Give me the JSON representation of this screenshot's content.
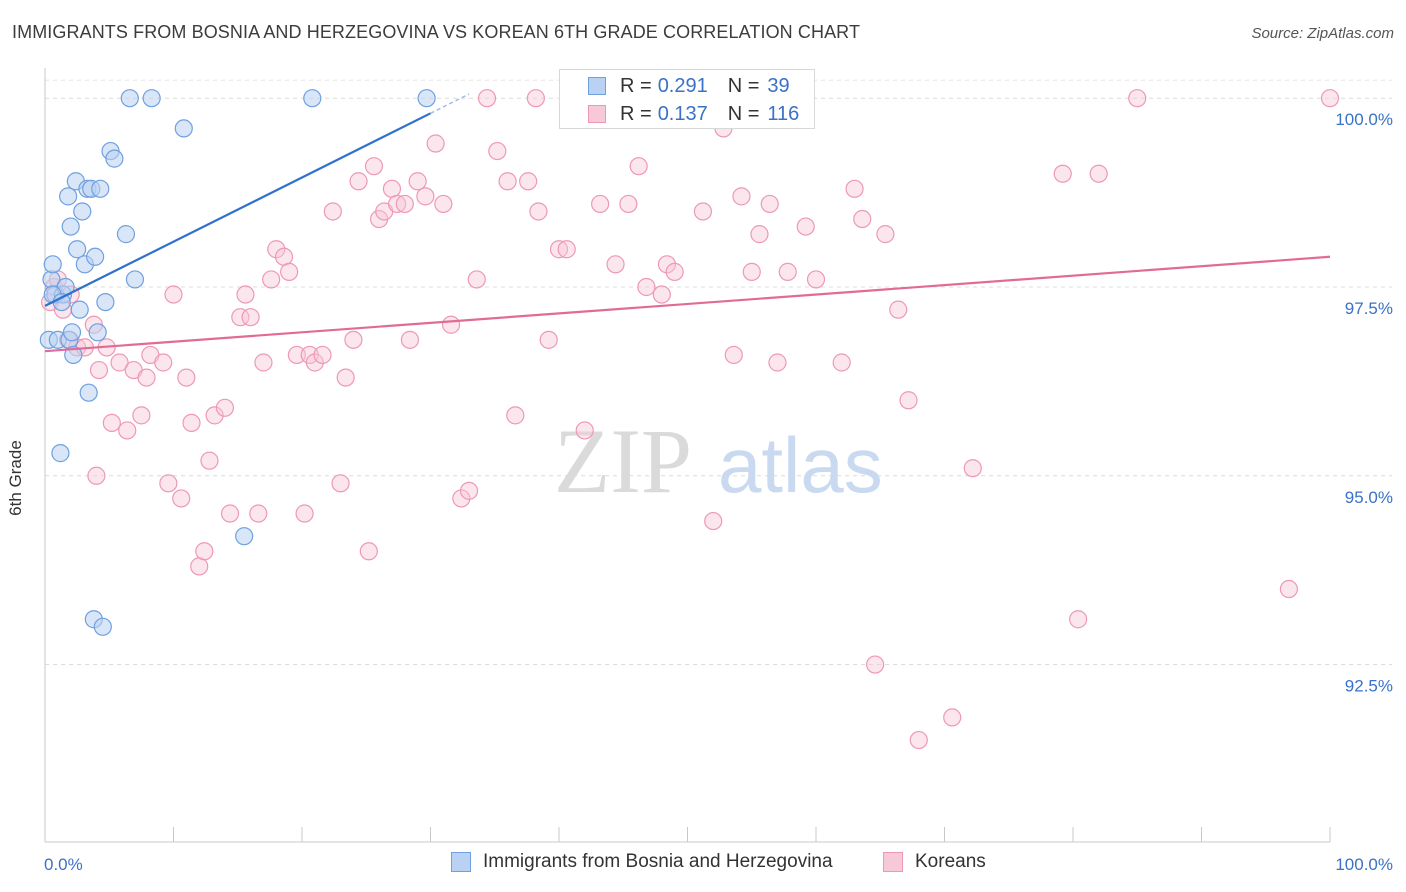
{
  "title": "IMMIGRANTS FROM BOSNIA AND HERZEGOVINA VS KOREAN 6TH GRADE CORRELATION CHART",
  "source": "Source: ZipAtlas.com",
  "watermark": {
    "zip": "ZIP",
    "atlas": "atlas"
  },
  "legend": {
    "r_label": "R =",
    "n_label": "N =",
    "series1": {
      "r": "0.291",
      "n": "39"
    },
    "series2": {
      "r": "0.137",
      "n": "116"
    }
  },
  "colors": {
    "blue": "#6fa0e0",
    "blue_fill": "#b9d1f2",
    "blue_line": "#2f72cc",
    "pink": "#ee98b5",
    "pink_fill": "#f7c8d8",
    "pink_line": "#e26b96",
    "axis_text": "#3a72c8"
  },
  "chart_data": {
    "type": "scatter",
    "title": "IMMIGRANTS FROM BOSNIA AND HERZEGOVINA VS KOREAN 6TH GRADE CORRELATION CHART",
    "xlabel": "",
    "ylabel": "6th Grade",
    "xlim": [
      0,
      100
    ],
    "ylim": [
      90.15,
      100.4
    ],
    "x_tick_labels": [
      "0.0%",
      "100.0%"
    ],
    "y_ticks": [
      92.5,
      95.0,
      97.5,
      100.0
    ],
    "y_tick_labels": [
      "92.5%",
      "95.0%",
      "97.5%",
      "100.0%"
    ],
    "series": [
      {
        "name": "Immigrants from Bosnia and Herzegovina",
        "r": 0.291,
        "n": 39,
        "trend": {
          "x": [
            0.0,
            30.0
          ],
          "y": [
            97.25,
            99.8
          ]
        },
        "points": [
          [
            0.3,
            96.8
          ],
          [
            0.5,
            97.6
          ],
          [
            0.6,
            97.8
          ],
          [
            0.8,
            97.4
          ],
          [
            1.0,
            96.8
          ],
          [
            1.2,
            95.3
          ],
          [
            1.4,
            97.4
          ],
          [
            1.6,
            97.5
          ],
          [
            1.8,
            98.7
          ],
          [
            1.9,
            96.8
          ],
          [
            2.0,
            98.3
          ],
          [
            2.1,
            96.9
          ],
          [
            2.2,
            96.6
          ],
          [
            2.4,
            98.9
          ],
          [
            2.5,
            98.0
          ],
          [
            2.7,
            97.2
          ],
          [
            2.9,
            98.5
          ],
          [
            3.1,
            97.8
          ],
          [
            3.3,
            98.8
          ],
          [
            3.4,
            96.1
          ],
          [
            3.6,
            98.8
          ],
          [
            3.8,
            93.1
          ],
          [
            3.9,
            97.9
          ],
          [
            4.1,
            96.9
          ],
          [
            4.3,
            98.8
          ],
          [
            4.5,
            93.0
          ],
          [
            4.7,
            97.3
          ],
          [
            5.1,
            99.3
          ],
          [
            5.4,
            99.2
          ],
          [
            6.3,
            98.2
          ],
          [
            7.0,
            97.6
          ],
          [
            6.6,
            100.0
          ],
          [
            8.3,
            100.0
          ],
          [
            10.8,
            99.6
          ],
          [
            15.5,
            94.2
          ],
          [
            20.8,
            100.0
          ],
          [
            29.7,
            100.0
          ],
          [
            0.6,
            97.4
          ],
          [
            1.3,
            97.3
          ]
        ]
      },
      {
        "name": "Koreans",
        "r": 0.137,
        "n": 116,
        "trend": {
          "x": [
            0.0,
            100.0
          ],
          "y": [
            96.65,
            97.9
          ]
        },
        "points": [
          [
            0.4,
            97.3
          ],
          [
            0.7,
            97.5
          ],
          [
            1.0,
            97.6
          ],
          [
            1.4,
            97.2
          ],
          [
            1.8,
            96.8
          ],
          [
            2.0,
            97.4
          ],
          [
            2.5,
            96.7
          ],
          [
            3.1,
            96.7
          ],
          [
            3.8,
            97.0
          ],
          [
            4.0,
            95.0
          ],
          [
            4.2,
            96.4
          ],
          [
            4.8,
            96.7
          ],
          [
            5.2,
            95.7
          ],
          [
            5.8,
            96.5
          ],
          [
            6.4,
            95.6
          ],
          [
            6.9,
            96.4
          ],
          [
            7.5,
            95.8
          ],
          [
            7.9,
            96.3
          ],
          [
            8.2,
            96.6
          ],
          [
            9.2,
            96.5
          ],
          [
            9.6,
            94.9
          ],
          [
            10.0,
            97.4
          ],
          [
            10.6,
            94.7
          ],
          [
            11.0,
            96.3
          ],
          [
            11.4,
            95.7
          ],
          [
            12.0,
            93.8
          ],
          [
            12.4,
            94.0
          ],
          [
            12.8,
            95.2
          ],
          [
            13.2,
            95.8
          ],
          [
            14.0,
            95.9
          ],
          [
            14.4,
            94.5
          ],
          [
            15.2,
            97.1
          ],
          [
            15.6,
            97.4
          ],
          [
            16.0,
            97.1
          ],
          [
            16.6,
            94.5
          ],
          [
            17.0,
            96.5
          ],
          [
            17.6,
            97.6
          ],
          [
            18.0,
            98.0
          ],
          [
            18.6,
            97.9
          ],
          [
            19.0,
            97.7
          ],
          [
            19.6,
            96.6
          ],
          [
            20.2,
            94.5
          ],
          [
            20.6,
            96.6
          ],
          [
            21.0,
            96.5
          ],
          [
            21.6,
            96.6
          ],
          [
            22.4,
            98.5
          ],
          [
            23.0,
            94.9
          ],
          [
            23.4,
            96.3
          ],
          [
            24.0,
            96.8
          ],
          [
            24.4,
            98.9
          ],
          [
            25.2,
            94.0
          ],
          [
            25.6,
            99.1
          ],
          [
            26.0,
            98.4
          ],
          [
            26.4,
            98.5
          ],
          [
            27.0,
            98.8
          ],
          [
            27.4,
            98.6
          ],
          [
            28.0,
            98.6
          ],
          [
            28.4,
            96.8
          ],
          [
            29.0,
            98.9
          ],
          [
            29.6,
            98.7
          ],
          [
            30.4,
            99.4
          ],
          [
            31.0,
            98.6
          ],
          [
            31.6,
            97.0
          ],
          [
            32.4,
            94.7
          ],
          [
            33.0,
            94.8
          ],
          [
            33.6,
            97.6
          ],
          [
            34.4,
            100.0
          ],
          [
            35.2,
            99.3
          ],
          [
            36.0,
            98.9
          ],
          [
            36.6,
            95.8
          ],
          [
            37.6,
            98.9
          ],
          [
            38.2,
            100.0
          ],
          [
            38.4,
            98.5
          ],
          [
            39.2,
            96.8
          ],
          [
            40.0,
            98.0
          ],
          [
            40.6,
            98.0
          ],
          [
            41.2,
            99.8
          ],
          [
            42.0,
            95.6
          ],
          [
            42.6,
            100.0
          ],
          [
            43.2,
            98.6
          ],
          [
            44.4,
            97.8
          ],
          [
            45.4,
            98.6
          ],
          [
            46.2,
            99.1
          ],
          [
            46.8,
            97.5
          ],
          [
            47.4,
            100.0
          ],
          [
            48.0,
            97.4
          ],
          [
            48.4,
            97.8
          ],
          [
            49.0,
            97.7
          ],
          [
            49.6,
            100.0
          ],
          [
            50.4,
            100.0
          ],
          [
            51.2,
            98.5
          ],
          [
            52.0,
            94.4
          ],
          [
            52.8,
            99.6
          ],
          [
            53.6,
            96.6
          ],
          [
            54.2,
            98.7
          ],
          [
            55.0,
            97.7
          ],
          [
            55.6,
            98.2
          ],
          [
            56.4,
            98.6
          ],
          [
            57.0,
            96.5
          ],
          [
            57.8,
            97.7
          ],
          [
            59.2,
            98.3
          ],
          [
            60.0,
            97.6
          ],
          [
            62.0,
            96.5
          ],
          [
            63.0,
            98.8
          ],
          [
            63.6,
            98.4
          ],
          [
            64.6,
            92.5
          ],
          [
            65.4,
            98.2
          ],
          [
            66.4,
            97.2
          ],
          [
            67.2,
            96.0
          ],
          [
            68.0,
            91.5
          ],
          [
            70.6,
            91.8
          ],
          [
            72.2,
            95.1
          ],
          [
            79.2,
            99.0
          ],
          [
            80.4,
            93.1
          ],
          [
            82.0,
            99.0
          ],
          [
            96.8,
            93.5
          ],
          [
            100.0,
            100.0
          ],
          [
            85.0,
            100.0
          ]
        ]
      }
    ]
  },
  "bottom_legend": {
    "series1": "Immigrants from Bosnia and Herzegovina",
    "series2": "Koreans"
  }
}
